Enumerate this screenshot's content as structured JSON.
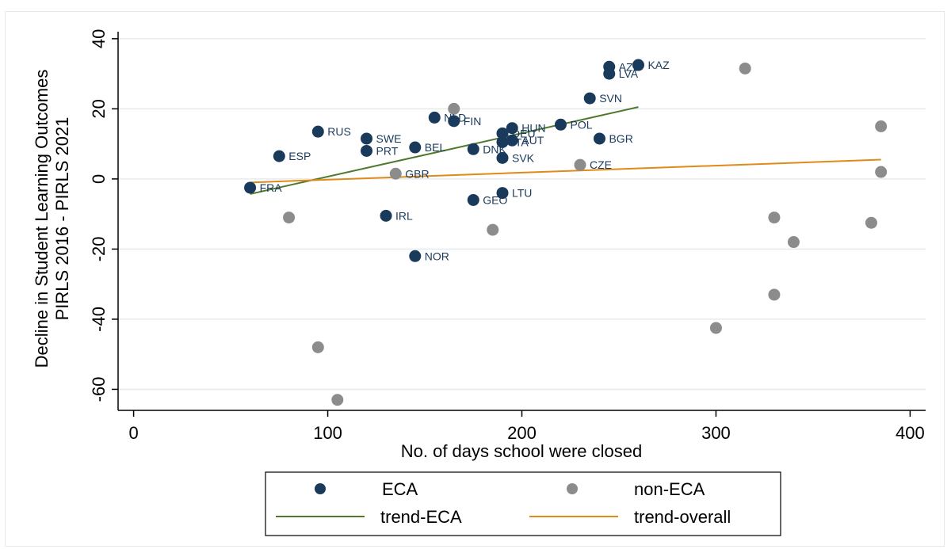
{
  "chart_data": {
    "type": "scatter",
    "title": "",
    "xlabel": "No. of days school were closed",
    "ylabel_lines": [
      "Decline in Student Learning Outcomes",
      "PIRLS 2016 - PIRLS 2021"
    ],
    "xlim": [
      -8,
      408
    ],
    "ylim": [
      -66,
      42
    ],
    "x_ticks": [
      0,
      100,
      200,
      300,
      400
    ],
    "y_ticks": [
      40,
      20,
      0,
      -20,
      -40,
      -60
    ],
    "y_tick_labels": [
      "40",
      "20",
      "0",
      "-20",
      "-40",
      "-60"
    ],
    "grid": true,
    "colors": {
      "eca": "#1a3a5c",
      "non_eca": "#8c8c8c",
      "trend_eca": "#4f7a2e",
      "trend_overall": "#e08a1a",
      "grid": "#e6eaee"
    },
    "series": [
      {
        "name": "ECA",
        "points": [
          {
            "x": 60,
            "y": -2.5,
            "label": "FRA"
          },
          {
            "x": 75,
            "y": 6.5,
            "label": "ESP"
          },
          {
            "x": 95,
            "y": 13.5,
            "label": "RUS"
          },
          {
            "x": 120,
            "y": 11.5,
            "label": "SWE"
          },
          {
            "x": 120,
            "y": 8,
            "label": "PRT"
          },
          {
            "x": 145,
            "y": 9,
            "label": "BEL"
          },
          {
            "x": 155,
            "y": 17.5,
            "label": "NLD"
          },
          {
            "x": 165,
            "y": 16.5,
            "label": "FIN"
          },
          {
            "x": 130,
            "y": -10.5,
            "label": "IRL"
          },
          {
            "x": 145,
            "y": -22,
            "label": "NOR"
          },
          {
            "x": 175,
            "y": 8.5,
            "label": "DNK"
          },
          {
            "x": 175,
            "y": -6,
            "label": "GEO"
          },
          {
            "x": 190,
            "y": 6,
            "label": "SVK"
          },
          {
            "x": 190,
            "y": -4,
            "label": "LTU"
          },
          {
            "x": 190,
            "y": 13,
            "label": "DEU"
          },
          {
            "x": 195,
            "y": 14.5,
            "label": "HUN"
          },
          {
            "x": 190,
            "y": 10.5,
            "label": "ITA"
          },
          {
            "x": 195,
            "y": 11,
            "label": "AUT"
          },
          {
            "x": 220,
            "y": 15.5,
            "label": "POL"
          },
          {
            "x": 235,
            "y": 23,
            "label": "SVN"
          },
          {
            "x": 240,
            "y": 11.5,
            "label": "BGR"
          },
          {
            "x": 245,
            "y": 32,
            "label": "AZE"
          },
          {
            "x": 245,
            "y": 30,
            "label": "LVA"
          },
          {
            "x": 260,
            "y": 32.5,
            "label": "KAZ"
          }
        ]
      },
      {
        "name": "non-ECA",
        "points": [
          {
            "x": 80,
            "y": -11,
            "label": ""
          },
          {
            "x": 95,
            "y": -48,
            "label": ""
          },
          {
            "x": 105,
            "y": -63,
            "label": ""
          },
          {
            "x": 135,
            "y": 1.5,
            "label": "GBR"
          },
          {
            "x": 165,
            "y": 20,
            "label": ""
          },
          {
            "x": 185,
            "y": -14.5,
            "label": ""
          },
          {
            "x": 230,
            "y": 4,
            "label": "CZE"
          },
          {
            "x": 300,
            "y": -42.5,
            "label": ""
          },
          {
            "x": 315,
            "y": 31.5,
            "label": ""
          },
          {
            "x": 330,
            "y": -11,
            "label": ""
          },
          {
            "x": 330,
            "y": -33,
            "label": ""
          },
          {
            "x": 340,
            "y": -18,
            "label": ""
          },
          {
            "x": 380,
            "y": -12.5,
            "label": ""
          },
          {
            "x": 385,
            "y": 15,
            "label": ""
          },
          {
            "x": 385,
            "y": 2,
            "label": ""
          }
        ]
      }
    ],
    "trend_lines": [
      {
        "name": "trend-ECA",
        "x": [
          60,
          260
        ],
        "y": [
          -4.3,
          20.5
        ]
      },
      {
        "name": "trend-overall",
        "x": [
          60,
          385
        ],
        "y": [
          -1,
          5.5
        ]
      }
    ],
    "legend": {
      "placement": "bottom-center",
      "items": [
        "ECA",
        "non-ECA",
        "trend-ECA",
        "trend-overall"
      ]
    }
  }
}
